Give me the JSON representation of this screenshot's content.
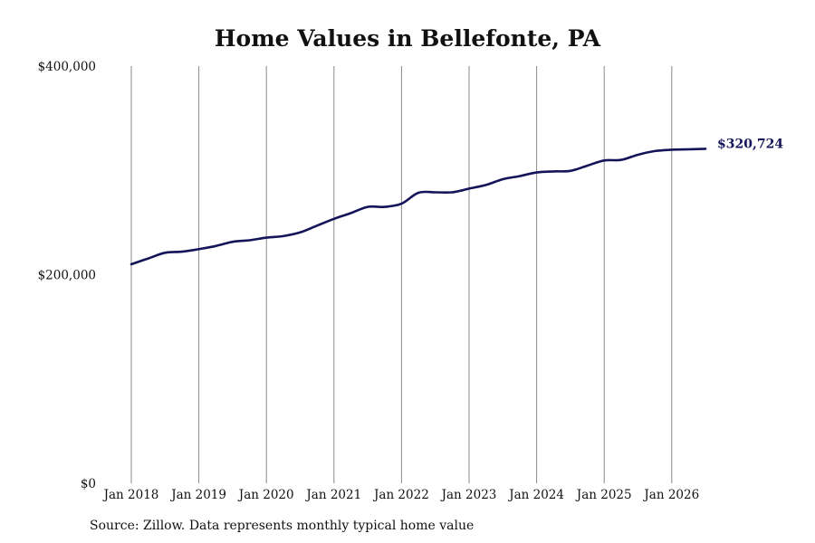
{
  "chart_data": {
    "type": "line",
    "title": "Home Values in Bellefonte, PA",
    "source": "Source: Zillow. Data represents monthly typical home value",
    "xlabel": "",
    "ylabel": "",
    "ylim": [
      0,
      400000
    ],
    "y_ticks": [
      {
        "value": 0,
        "label": "$0"
      },
      {
        "value": 200000,
        "label": "$200,000"
      },
      {
        "value": 400000,
        "label": "$400,000"
      }
    ],
    "x_ticks": [
      {
        "value": "2018-01",
        "label": "Jan 2018"
      },
      {
        "value": "2019-01",
        "label": "Jan 2019"
      },
      {
        "value": "2020-01",
        "label": "Jan 2020"
      },
      {
        "value": "2021-01",
        "label": "Jan 2021"
      },
      {
        "value": "2022-01",
        "label": "Jan 2022"
      },
      {
        "value": "2023-01",
        "label": "Jan 2023"
      },
      {
        "value": "2024-01",
        "label": "Jan 2024"
      },
      {
        "value": "2025-01",
        "label": "Jan 2025"
      },
      {
        "value": "2026-01",
        "label": "Jan 2026"
      }
    ],
    "grid": {
      "vertical": true,
      "horizontal": false
    },
    "line_color": "#14145a",
    "grid_color": "#8a8a8a",
    "end_label": "$320,724",
    "x": [
      "2018-01",
      "2018-04",
      "2018-07",
      "2018-10",
      "2019-01",
      "2019-04",
      "2019-07",
      "2019-10",
      "2020-01",
      "2020-04",
      "2020-07",
      "2020-10",
      "2021-01",
      "2021-04",
      "2021-07",
      "2021-10",
      "2022-01",
      "2022-04",
      "2022-07",
      "2022-10",
      "2023-01",
      "2023-04",
      "2023-07",
      "2023-10",
      "2024-01",
      "2024-04",
      "2024-07",
      "2024-10",
      "2025-01",
      "2025-04",
      "2025-07",
      "2025-10",
      "2026-01",
      "2026-04",
      "2026-07"
    ],
    "values": [
      210000,
      215500,
      221000,
      222000,
      224500,
      227500,
      231500,
      233000,
      235500,
      237000,
      240500,
      247000,
      253500,
      259000,
      265000,
      265000,
      268000,
      278500,
      279000,
      279000,
      282500,
      286000,
      291500,
      294500,
      298000,
      299000,
      299500,
      304500,
      309500,
      310000,
      315000,
      318500,
      319800,
      320200,
      320724
    ]
  }
}
